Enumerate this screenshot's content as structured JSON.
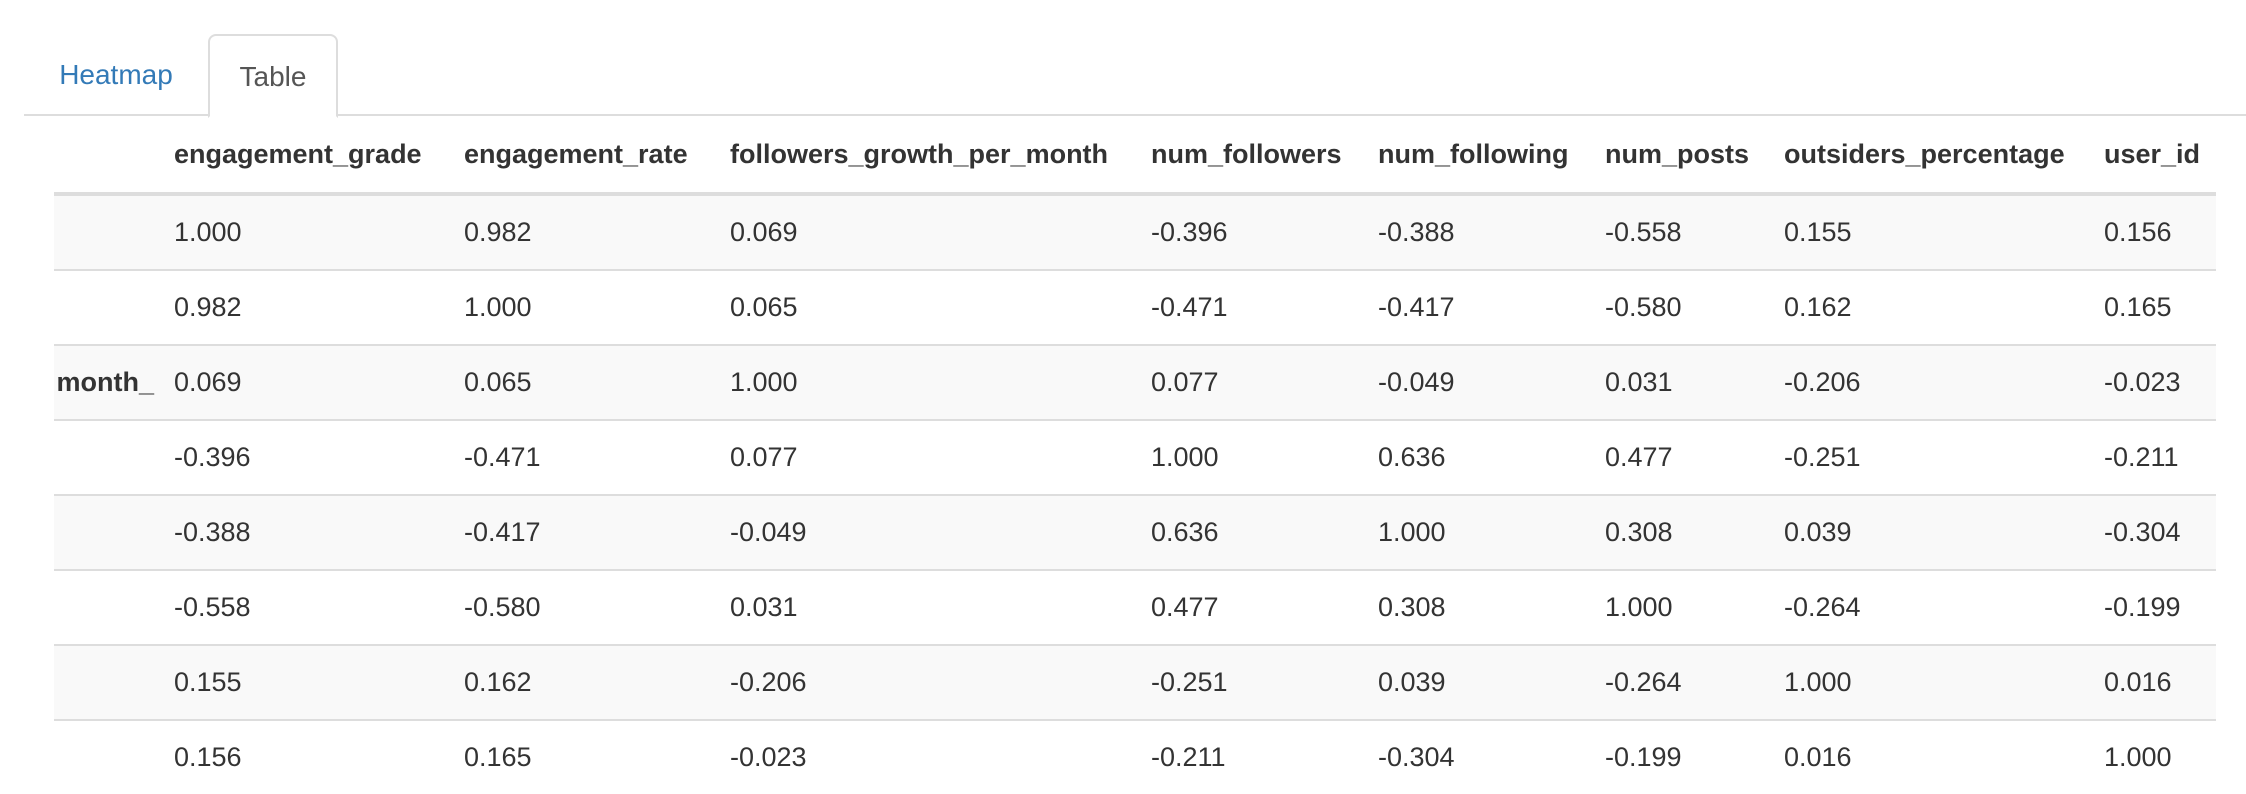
{
  "tabs": [
    {
      "label": "Heatmap",
      "active": false
    },
    {
      "label": "Table",
      "active": true
    }
  ],
  "table": {
    "columns": [
      "",
      "engagement_grade",
      "engagement_rate",
      "followers_growth_per_month",
      "num_followers",
      "num_following",
      "num_posts",
      "outsiders_percentage",
      "user_id"
    ],
    "rows": [
      {
        "label": "",
        "cells": [
          "1.000",
          "0.982",
          "0.069",
          "-0.396",
          "-0.388",
          "-0.558",
          "0.155",
          "0.156"
        ]
      },
      {
        "label": "",
        "cells": [
          "0.982",
          "1.000",
          "0.065",
          "-0.471",
          "-0.417",
          "-0.580",
          "0.162",
          "0.165"
        ]
      },
      {
        "label": "_month",
        "cells": [
          "0.069",
          "0.065",
          "1.000",
          "0.077",
          "-0.049",
          "0.031",
          "-0.206",
          "-0.023"
        ]
      },
      {
        "label": "",
        "cells": [
          "-0.396",
          "-0.471",
          "0.077",
          "1.000",
          "0.636",
          "0.477",
          "-0.251",
          "-0.211"
        ]
      },
      {
        "label": "",
        "cells": [
          "-0.388",
          "-0.417",
          "-0.049",
          "0.636",
          "1.000",
          "0.308",
          "0.039",
          "-0.304"
        ]
      },
      {
        "label": "",
        "cells": [
          "-0.558",
          "-0.580",
          "0.031",
          "0.477",
          "0.308",
          "1.000",
          "-0.264",
          "-0.199"
        ]
      },
      {
        "label": "",
        "cells": [
          "0.155",
          "0.162",
          "-0.206",
          "-0.251",
          "0.039",
          "-0.264",
          "1.000",
          "0.016"
        ]
      },
      {
        "label": "",
        "cells": [
          "0.156",
          "0.165",
          "-0.023",
          "-0.211",
          "-0.304",
          "-0.199",
          "0.016",
          "1.000"
        ]
      }
    ]
  },
  "colors": {
    "link": "#337ab7",
    "border": "#dddddd",
    "stripe": "#f9f9f9",
    "text": "#333333"
  }
}
